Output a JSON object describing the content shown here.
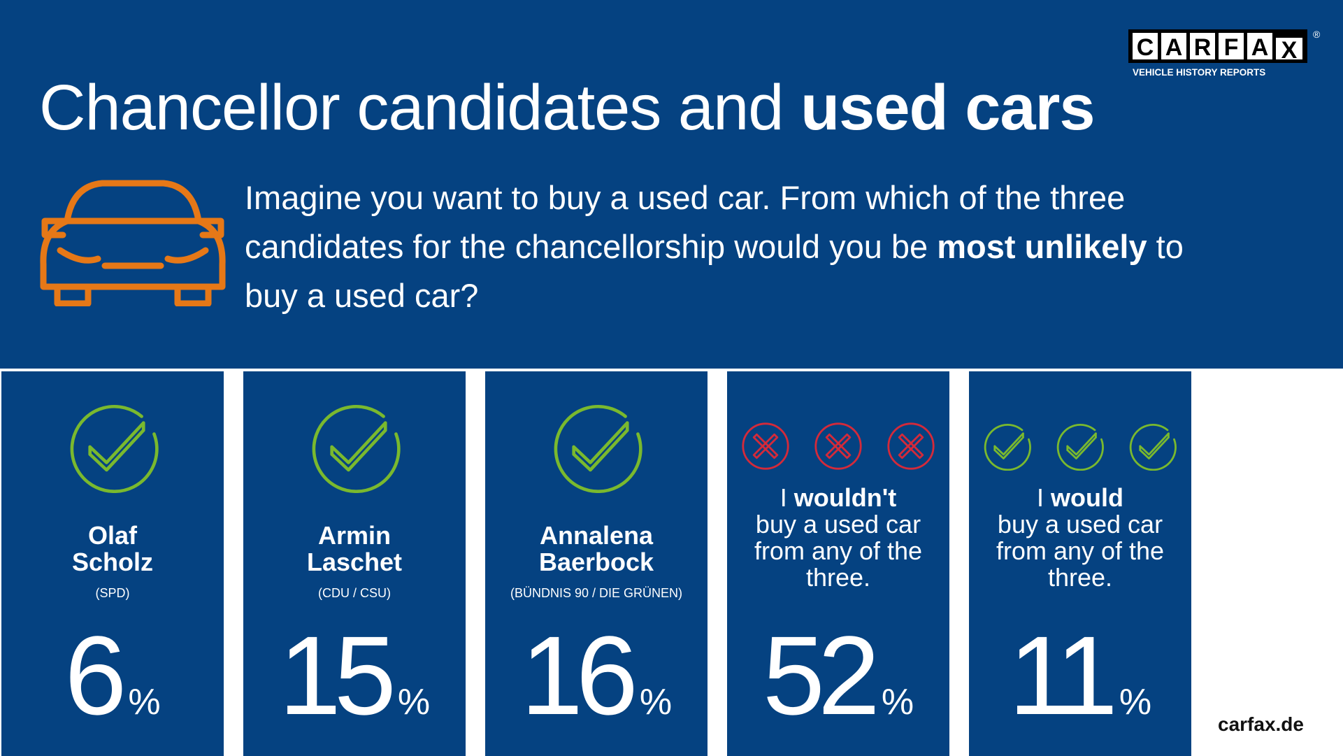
{
  "header": {
    "title_regular": "Chancellor candidates and ",
    "title_bold": "used cars",
    "question_part1": "Imagine you want to buy a used car. From which of the three candidates for the chancellorship would you be ",
    "question_bold": "most unlikely",
    "question_part2": " to buy a used car?"
  },
  "logo": {
    "letters": [
      "C",
      "A",
      "R",
      "F",
      "A",
      "X"
    ],
    "tagline": "VEHICLE HISTORY REPORTS",
    "registered": "®"
  },
  "cards": [
    {
      "type": "candidate",
      "icon": "check-circle-icon",
      "first_name": "Olaf",
      "last_name": "Scholz",
      "party": "(SPD)",
      "value": "6",
      "unit": "%"
    },
    {
      "type": "candidate",
      "icon": "check-circle-icon",
      "first_name": "Armin",
      "last_name": "Laschet",
      "party": "(CDU / CSU)",
      "value": "15",
      "unit": "%"
    },
    {
      "type": "candidate",
      "icon": "check-circle-icon",
      "first_name": "Annalena",
      "last_name": "Baerbock",
      "party": "(BÜNDNIS 90 / DIE GRÜNEN)",
      "value": "16",
      "unit": "%"
    },
    {
      "type": "none",
      "icon": "x-circle-icon",
      "statement_pre": "I ",
      "statement_bold": "wouldn't",
      "statement_post": " buy a used car from any of the three.",
      "value": "52",
      "unit": "%"
    },
    {
      "type": "all",
      "icon": "check-circle-icon",
      "statement_pre": "I ",
      "statement_bold": "would",
      "statement_post": " buy a used car from any of the three.",
      "value": "11",
      "unit": "%"
    }
  ],
  "footer": {
    "site": "carfax.de"
  },
  "colors": {
    "background": "#054281",
    "accent_orange": "#E67817",
    "check_green": "#7AB92E",
    "cross_red": "#D42A3A"
  }
}
